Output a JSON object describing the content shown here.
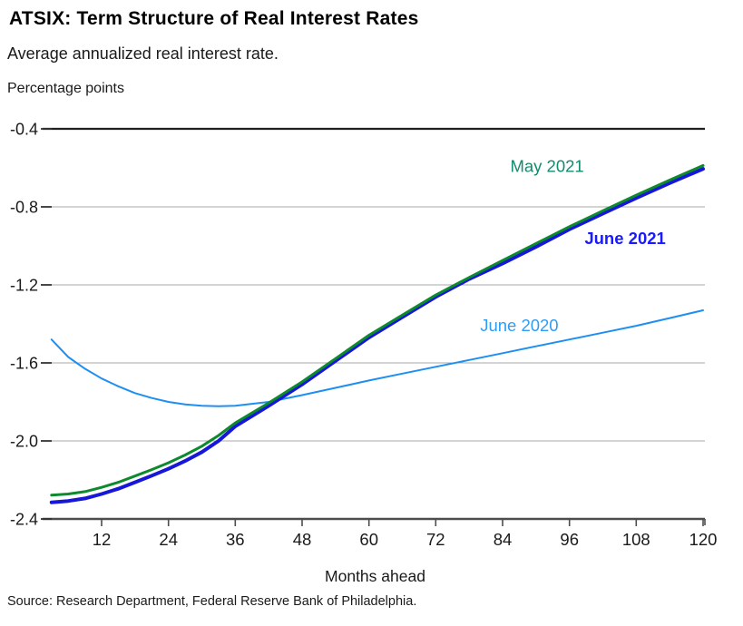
{
  "chart_data": {
    "type": "line",
    "title": "ATSIX: Term Structure of Real Interest Rates",
    "subtitle": "Average annualized real interest rate.",
    "y_axis_unit_label": "Percentage points",
    "xlabel": "Months ahead",
    "source_note": "Source: Research Department, Federal Reserve Bank of Philadelphia.",
    "xlim": [
      2,
      120
    ],
    "ylim": [
      -2.4,
      -0.4
    ],
    "xticks": [
      12,
      24,
      36,
      48,
      60,
      72,
      84,
      96,
      108,
      120
    ],
    "yticks": [
      -0.4,
      -0.8,
      -1.2,
      -1.6,
      -2.0,
      -2.4
    ],
    "ytick_labels": [
      "-0.4",
      "-0.8",
      "-1.2",
      "-1.6",
      "-2.0",
      "-2.4"
    ],
    "grid": "horizontal",
    "legend_position": "inline-labels",
    "x": [
      3,
      6,
      9,
      12,
      15,
      18,
      21,
      24,
      27,
      30,
      33,
      36,
      42,
      48,
      54,
      60,
      66,
      72,
      78,
      84,
      90,
      96,
      102,
      108,
      114,
      120
    ],
    "series": [
      {
        "name": "June 2020",
        "color": "#1e8ff2",
        "label_color": "#2d9df5",
        "label_bold": false,
        "line_width": 2,
        "values": [
          -1.48,
          -1.57,
          -1.63,
          -1.68,
          -1.72,
          -1.755,
          -1.78,
          -1.8,
          -1.813,
          -1.82,
          -1.822,
          -1.82,
          -1.8,
          -1.765,
          -1.728,
          -1.69,
          -1.655,
          -1.62,
          -1.585,
          -1.55,
          -1.515,
          -1.48,
          -1.445,
          -1.41,
          -1.37,
          -1.33
        ],
        "label_anchor": {
          "month": 87,
          "value": -1.41
        }
      },
      {
        "name": "June 2021",
        "color": "#1717d9",
        "label_color": "#1a1aff",
        "label_bold": true,
        "line_width": 4,
        "values": [
          -2.315,
          -2.308,
          -2.295,
          -2.272,
          -2.245,
          -2.212,
          -2.178,
          -2.143,
          -2.103,
          -2.057,
          -2.0,
          -1.925,
          -1.82,
          -1.71,
          -1.59,
          -1.47,
          -1.365,
          -1.262,
          -1.17,
          -1.09,
          -1.005,
          -0.915,
          -0.835,
          -0.755,
          -0.678,
          -0.605
        ],
        "label_anchor": {
          "month": 106,
          "value": -0.963
        }
      },
      {
        "name": "May 2021",
        "color": "#0e8a2e",
        "label_color": "#108d6e",
        "label_bold": false,
        "line_width": 3,
        "values": [
          -2.278,
          -2.272,
          -2.26,
          -2.238,
          -2.212,
          -2.18,
          -2.147,
          -2.112,
          -2.072,
          -2.027,
          -1.972,
          -1.908,
          -1.805,
          -1.697,
          -1.578,
          -1.458,
          -1.355,
          -1.252,
          -1.162,
          -1.075,
          -0.988,
          -0.902,
          -0.82,
          -0.74,
          -0.663,
          -0.588
        ],
        "label_anchor": {
          "month": 92,
          "value": -0.593
        }
      }
    ],
    "colors": {
      "grid_line": "#a8a8a8",
      "top_grid_line": "#1f1f1f",
      "bottom_axis": "#4d4d4d",
      "tick_mark": "#333333",
      "tick_label": "#1a1a1a"
    }
  }
}
